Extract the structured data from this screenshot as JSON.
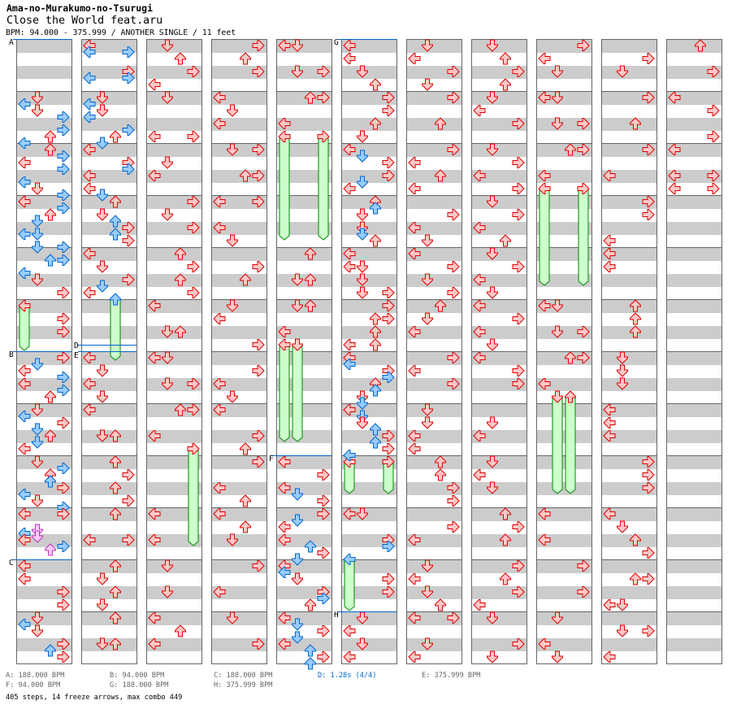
{
  "header": {
    "song_title": "Ama-no-Murakumo-no-Tsurugi",
    "subtitle": "Close the World feat.aru",
    "info": "BPM: 94.000 - 375.999 / ANOTHER SINGLE / 11 feet"
  },
  "colors": {
    "quarter_fill": "#ffc8c8",
    "quarter_stroke": "#dd0000",
    "eighth_fill": "#99ccff",
    "eighth_stroke": "#0066cc",
    "sixteenth_fill": "#ffccff",
    "sixteenth_stroke": "#bb33bb",
    "freeze_fill": "#ccffcc",
    "freeze_stroke": "#008800",
    "marker": "#0066cc"
  },
  "chart": {
    "beats_per_column": 48,
    "columns": [
      {
        "notes": "4D 4.5L 5D 5.5R 6.5R 7U 7.5L 8U 8.5R 9L 9.5R 10.5L 11D 11.5R 12L 12.5R 13U 13.5D 14.5L 14.5D 15.5D 15.5R 16.5U 16.5R 17.5L 18D 19R 21R 22R 24R 24.5D 25L 25.5R 26L 26.5R 27U 28D 28.5L 29R 29.5D 30U 30.5D 31L 32D 32.5R 33U 33.5U 34R 34.5L 35D 35.5R 36L 36R 37.25D 37.5L 37.75D 38L 38.5R 38.75U 40L 41L 42R 43R 44D 44.5L 45D 46R 46.5U 47R",
        "freezes": [
          "L 20 23"
        ]
      },
      {
        "notes": "0L 0.5L 0.5R 2R 2.5R 2.5L 4D 4.5L 5D 5.5L 6.5R 7U 7.5D 8L 9R 9.5R 10L 11L 11.5D 12U 13D 13.5U 14R 14.5U 15R 16L 17D 18R 18.5D 19L 24L 25D 26L 27D 28L 30D 30U 32U 33R 34U 35R 36U 38L 38R 40U 41D 42U 43D 44U 46D 46U",
        "freezes": [
          "U 19.5 23.75"
        ]
      },
      {
        "notes": "0D 1U 2R 3L 4D 7L 7R 9D 10L 12R 13D 14R 16U 17R 18U 19R 20L 22D 22U 24L 24D 26D 26R 28U 28R 30L 36L 38L 40D 42D 44L 45U 46L",
        "freezes": [
          "R 31 38"
        ]
      },
      {
        "notes": "0R 1U 2R 4L 5D 6L 8D 8R 10U 10R 12L 12R 14L 15D 17R 18U 20D 21L 23R 25R 26L 27D 28L 30R 31U 32R 34L 35U 36L 37U 38D 40R 42L 44D 46R",
        "freezes": []
      },
      {
        "notes": "0L 0D 2D 2R 4U 4R 6L 16U 18D 18U 20D 20U 22L 32L 33R 34L 34.5D 35R 36R 36.5D 37L 38L 38.5U 39R 39.5D 40L 40.5L 41D 42R 42.5R 43U 44L 44.5D 45R 45.5D 46L 46.5U 47R 47.5U",
        "freezes": [
          "L 7 14.5",
          "R 7 14.5",
          "L 23 30",
          "D 23 30"
        ]
      },
      {
        "notes": "0L 1L 2D 3U 4R 5R 6U 7D 8L 8.5D 9R 10R 10.5D 11L 12U 12.5U 13D 14D 14.5D 15U 16L 17L 17D 18D 19D 19R 20R 21U 21R 22U 23L 23U 24L 24.5L 25R 25.5R 26U 26.5U 27D 27.5D 28L 28.5D 29D 29.5U 30R 30.5U 31R 31.5L 36L 36D 38R 38.5R 41R 42R 44D 45L 46D 47L",
        "freezes": [
          "L 32 34",
          "R 32 34",
          "L 39.5 43"
        ]
      },
      {
        "notes": "0D 1L 2R 3D 4R 6U 8R 9L 10U 11L 13R 14L 15D 16L 17R 18D 19R 20U 21D 22L 24R 25L 26R 28D 29D 30L 31L 32U 33U 34R 35R 37R 38L 40D 41L 42D 43U 44L 44R 46D 47L",
        "freezes": []
      },
      {
        "notes": "0D 1U 2R 3U 4D 5L 6R 8D 9R 10L 11R 12D 13R 14L 15U 16D 17R 18L 19D 20L 21R 22L 23D 24L 25R 26R 29D 30L 32D 33L 34D 36U 37R 38U 40R 41U 42R 43L 44D 46R 47D",
        "freezes": []
      },
      {
        "notes": "0R 1L 2D 4L 4D 6D 6R 8U 8R 10L 20L 20D 22D 22R 24U 24R 26L 36L 38L 40R 42R 44D 46L 47D",
        "freezes": [
          "L 11 18",
          "R 11 18",
          "D 27 34",
          "U 27 34"
        ]
      },
      {
        "notes": "1R 2D 4R 6U 8R 10L 12R 13R 15L 16L 17L 20U 21U 22U 24D 25D 26D 28L 29L 30L 32R 33R 34R 36L 37D 38U 39R 41U 41R 43L 43D 45D 45R 47L",
        "freezes": []
      },
      {
        "notes": "0U 2R 4L 5R 7R 8L 10L 10R 11L 11R",
        "freezes": []
      }
    ],
    "markers": [
      {
        "label": "A",
        "column": 1,
        "beat": 0
      },
      {
        "label": "B",
        "column": 1,
        "beat": 24
      },
      {
        "label": "C",
        "column": 1,
        "beat": 40
      },
      {
        "label": "D",
        "column": 2,
        "beat": 23.5
      },
      {
        "label": "E",
        "column": 2,
        "beat": 24
      },
      {
        "label": "F",
        "column": 5,
        "beat": 32
      },
      {
        "label": "G",
        "column": 6,
        "beat": 0
      },
      {
        "label": "H",
        "column": 6,
        "beat": 44
      }
    ]
  },
  "legend": [
    {
      "text": "A: 188.000 BPM",
      "highlight": false
    },
    {
      "text": "B: 94.000 BPM",
      "highlight": false
    },
    {
      "text": "C: 188.000 BPM",
      "highlight": false
    },
    {
      "text": "D: 1.28s (4/4)",
      "highlight": true
    },
    {
      "text": "E: 375.999 BPM",
      "highlight": false
    },
    {
      "text": "F: 94.000 BPM",
      "highlight": false
    },
    {
      "text": "G: 188.000 BPM",
      "highlight": false
    },
    {
      "text": "H: 375.999 BPM",
      "highlight": false
    }
  ],
  "stats": "405 steps, 14 freeze arrows, max combo 449"
}
